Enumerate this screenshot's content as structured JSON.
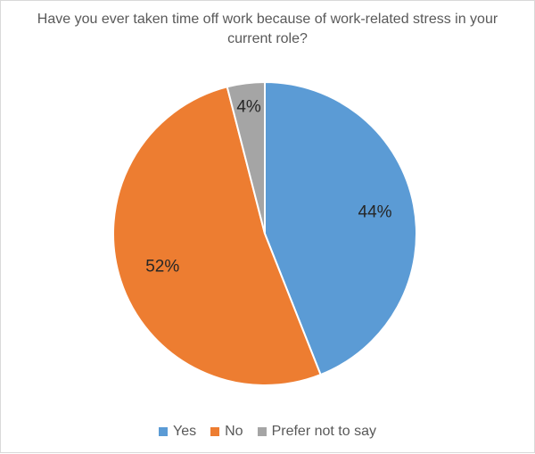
{
  "chart_data": {
    "type": "pie",
    "title": "Have you ever taken time off work because of work-related stress in your current role?",
    "categories": [
      "Yes",
      "No",
      "Prefer not to say"
    ],
    "values": [
      44,
      52,
      4
    ],
    "labels": [
      "44%",
      "52%",
      "4%"
    ],
    "colors": [
      "#5b9bd5",
      "#ed7d31",
      "#a5a5a5"
    ],
    "legend": "bottom"
  }
}
